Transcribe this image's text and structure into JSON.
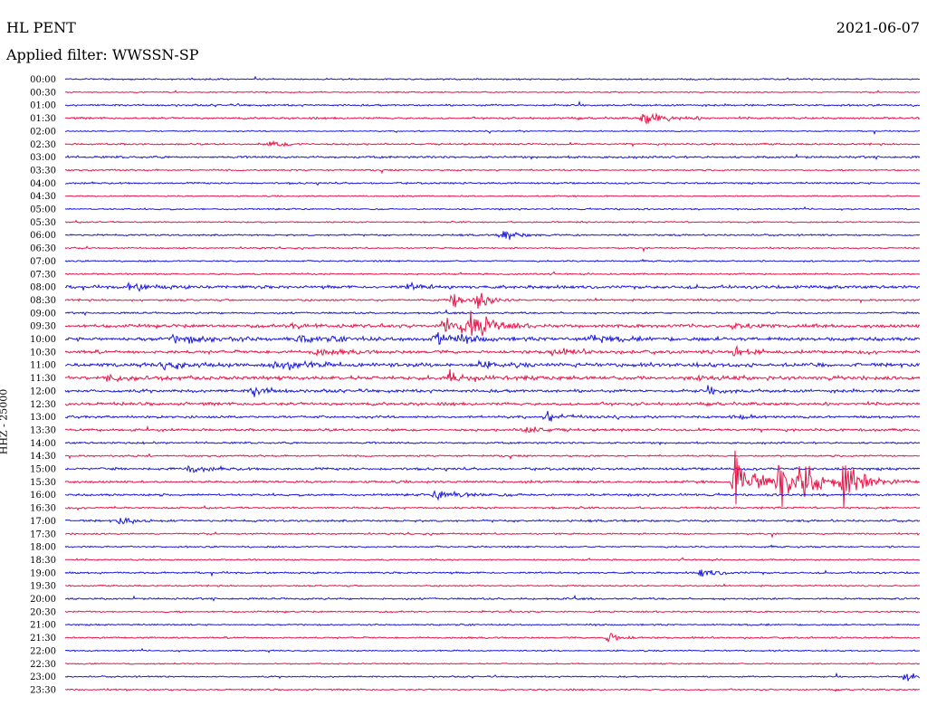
{
  "header": {
    "station": "HL PENT",
    "date": "2021-06-07",
    "filter": "Applied filter: WWSSN-SP"
  },
  "colors": {
    "trace_a": "#1a1adc",
    "trace_b": "#e8164a",
    "background": "#ffffff",
    "text": "#000000"
  },
  "chart_data": {
    "type": "line",
    "title": "HL PENT",
    "subtitle": "Applied filter: WWSSN-SP",
    "ylabel": "HHZ - 25000",
    "xlabel": "",
    "x_range_minutes": [
      0,
      30
    ],
    "row_labels": [
      "00:00",
      "00:30",
      "01:00",
      "01:30",
      "02:00",
      "02:30",
      "03:00",
      "03:30",
      "04:00",
      "04:30",
      "05:00",
      "05:30",
      "06:00",
      "06:30",
      "07:00",
      "07:30",
      "08:00",
      "08:30",
      "09:00",
      "09:30",
      "10:00",
      "10:30",
      "11:00",
      "11:30",
      "12:00",
      "12:30",
      "13:00",
      "13:30",
      "14:00",
      "14:30",
      "15:00",
      "15:30",
      "16:00",
      "16:30",
      "17:00",
      "17:30",
      "18:00",
      "18:30",
      "19:00",
      "19:30",
      "20:00",
      "20:30",
      "21:00",
      "21:30",
      "22:00",
      "22:30",
      "23:00",
      "23:30"
    ],
    "noise_level": [
      1.2,
      1.0,
      1.5,
      1.6,
      1.0,
      1.4,
      1.8,
      1.3,
      1.4,
      1.0,
      1.2,
      1.1,
      1.4,
      1.2,
      1.2,
      1.3,
      2.5,
      1.6,
      1.5,
      2.6,
      3.0,
      2.6,
      3.0,
      3.0,
      2.4,
      2.5,
      2.0,
      2.0,
      1.6,
      1.4,
      2.0,
      1.8,
      1.8,
      1.5,
      1.7,
      1.3,
      1.3,
      1.2,
      1.5,
      1.2,
      1.5,
      1.3,
      1.2,
      1.3,
      1.1,
      1.0,
      1.2,
      1.3
    ],
    "events": [
      {
        "row": 3,
        "t": 20.3,
        "amp": 12,
        "dur": 1.5
      },
      {
        "row": 5,
        "t": 7.2,
        "amp": 5,
        "dur": 1.2
      },
      {
        "row": 12,
        "t": 15.3,
        "amp": 10,
        "dur": 1.0
      },
      {
        "row": 16,
        "t": 2.2,
        "amp": 6,
        "dur": 1.6
      },
      {
        "row": 16,
        "t": 12.0,
        "amp": 5,
        "dur": 1.2
      },
      {
        "row": 17,
        "t": 13.6,
        "amp": 16,
        "dur": 0.6
      },
      {
        "row": 17,
        "t": 14.5,
        "amp": 20,
        "dur": 0.6
      },
      {
        "row": 19,
        "t": 13.3,
        "amp": 22,
        "dur": 1.4
      },
      {
        "row": 19,
        "t": 14.3,
        "amp": 20,
        "dur": 1.2
      },
      {
        "row": 19,
        "t": 8.0,
        "amp": 5,
        "dur": 1.4
      },
      {
        "row": 19,
        "t": 23.5,
        "amp": 5,
        "dur": 1.2
      },
      {
        "row": 20,
        "t": 3.8,
        "amp": 6,
        "dur": 2.4
      },
      {
        "row": 20,
        "t": 8.0,
        "amp": 5,
        "dur": 1.8
      },
      {
        "row": 20,
        "t": 13.0,
        "amp": 10,
        "dur": 1.8
      },
      {
        "row": 20,
        "t": 18.5,
        "amp": 8,
        "dur": 0.9
      },
      {
        "row": 21,
        "t": 8.8,
        "amp": 5,
        "dur": 1.5
      },
      {
        "row": 21,
        "t": 17.0,
        "amp": 5,
        "dur": 1.5
      },
      {
        "row": 21,
        "t": 23.5,
        "amp": 8,
        "dur": 0.9
      },
      {
        "row": 22,
        "t": 3.4,
        "amp": 7,
        "dur": 1.6
      },
      {
        "row": 22,
        "t": 7.3,
        "amp": 7,
        "dur": 2.4
      },
      {
        "row": 22,
        "t": 14.5,
        "amp": 5,
        "dur": 1.0
      },
      {
        "row": 23,
        "t": 1.5,
        "amp": 5,
        "dur": 2.0
      },
      {
        "row": 23,
        "t": 13.5,
        "amp": 9,
        "dur": 1.4
      },
      {
        "row": 23,
        "t": 22.3,
        "amp": 5,
        "dur": 1.0
      },
      {
        "row": 24,
        "t": 6.6,
        "amp": 10,
        "dur": 0.9
      },
      {
        "row": 24,
        "t": 22.6,
        "amp": 5,
        "dur": 1.0
      },
      {
        "row": 26,
        "t": 16.9,
        "amp": 7,
        "dur": 1.0
      },
      {
        "row": 26,
        "t": 23.5,
        "amp": 5,
        "dur": 1.0
      },
      {
        "row": 27,
        "t": 16.1,
        "amp": 9,
        "dur": 1.0
      },
      {
        "row": 30,
        "t": 4.3,
        "amp": 5,
        "dur": 1.2
      },
      {
        "row": 31,
        "t": 23.5,
        "amp": 50,
        "dur": 1.2
      },
      {
        "row": 31,
        "t": 25.0,
        "amp": 40,
        "dur": 1.2
      },
      {
        "row": 31,
        "t": 25.8,
        "amp": 35,
        "dur": 1.2
      },
      {
        "row": 31,
        "t": 27.3,
        "amp": 45,
        "dur": 1.2
      },
      {
        "row": 32,
        "t": 13.0,
        "amp": 7,
        "dur": 2.0
      },
      {
        "row": 34,
        "t": 1.9,
        "amp": 6,
        "dur": 1.2
      },
      {
        "row": 38,
        "t": 22.3,
        "amp": 8,
        "dur": 1.0
      },
      {
        "row": 43,
        "t": 19.0,
        "amp": 12,
        "dur": 0.8
      },
      {
        "row": 46,
        "t": 29.5,
        "amp": 10,
        "dur": 0.6
      }
    ]
  }
}
